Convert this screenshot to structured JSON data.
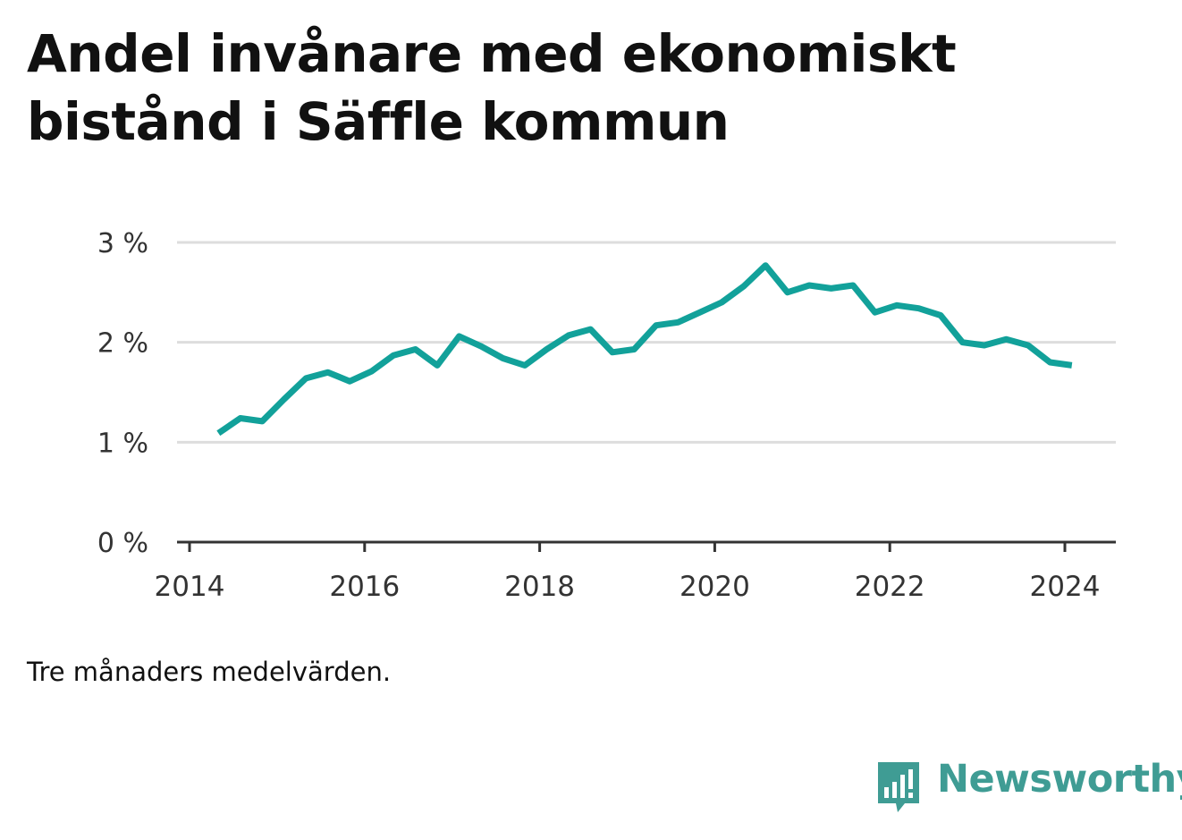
{
  "title": "Andel invånare med ekonomiskt bistånd i Säffle kommun",
  "note": "Tre månaders medelvärden.",
  "brand": {
    "name": "Newsworthy",
    "icon": "newsworthy-logo-icon",
    "color": "#3f9c94"
  },
  "chart_data": {
    "type": "line",
    "title": "Andel invånare med ekonomiskt bistånd i Säffle kommun",
    "xlabel": "",
    "ylabel": "",
    "xlim": [
      2014,
      2024.6
    ],
    "ylim": [
      0,
      3
    ],
    "yticks": [
      0,
      1,
      2,
      3
    ],
    "ytick_labels": [
      "0 %",
      "1 %",
      "2 %",
      "3 %"
    ],
    "xticks": [
      2014,
      2016,
      2018,
      2020,
      2022,
      2024
    ],
    "xtick_labels": [
      "2014",
      "2016",
      "2018",
      "2020",
      "2022",
      "2024"
    ],
    "grid": true,
    "line_color": "#12a19a",
    "series": [
      {
        "values": [
          {
            "x": 2014.33,
            "y": 1.09
          },
          {
            "x": 2014.58,
            "y": 1.24
          },
          {
            "x": 2014.83,
            "y": 1.21
          },
          {
            "x": 2015.08,
            "y": 1.43
          },
          {
            "x": 2015.33,
            "y": 1.64
          },
          {
            "x": 2015.58,
            "y": 1.7
          },
          {
            "x": 2015.83,
            "y": 1.61
          },
          {
            "x": 2016.08,
            "y": 1.71
          },
          {
            "x": 2016.33,
            "y": 1.87
          },
          {
            "x": 2016.58,
            "y": 1.93
          },
          {
            "x": 2016.83,
            "y": 1.77
          },
          {
            "x": 2017.08,
            "y": 2.06
          },
          {
            "x": 2017.33,
            "y": 1.96
          },
          {
            "x": 2017.58,
            "y": 1.84
          },
          {
            "x": 2017.83,
            "y": 1.77
          },
          {
            "x": 2018.08,
            "y": 1.93
          },
          {
            "x": 2018.33,
            "y": 2.07
          },
          {
            "x": 2018.58,
            "y": 2.13
          },
          {
            "x": 2018.83,
            "y": 1.9
          },
          {
            "x": 2019.08,
            "y": 1.93
          },
          {
            "x": 2019.33,
            "y": 2.17
          },
          {
            "x": 2019.58,
            "y": 2.2
          },
          {
            "x": 2019.83,
            "y": 2.3
          },
          {
            "x": 2020.08,
            "y": 2.4
          },
          {
            "x": 2020.33,
            "y": 2.56
          },
          {
            "x": 2020.58,
            "y": 2.77
          },
          {
            "x": 2020.83,
            "y": 2.5
          },
          {
            "x": 2021.08,
            "y": 2.57
          },
          {
            "x": 2021.33,
            "y": 2.54
          },
          {
            "x": 2021.58,
            "y": 2.57
          },
          {
            "x": 2021.83,
            "y": 2.3
          },
          {
            "x": 2022.08,
            "y": 2.37
          },
          {
            "x": 2022.33,
            "y": 2.34
          },
          {
            "x": 2022.58,
            "y": 2.27
          },
          {
            "x": 2022.83,
            "y": 2.0
          },
          {
            "x": 2023.08,
            "y": 1.97
          },
          {
            "x": 2023.33,
            "y": 2.03
          },
          {
            "x": 2023.58,
            "y": 1.97
          },
          {
            "x": 2023.83,
            "y": 1.8
          },
          {
            "x": 2024.08,
            "y": 1.77
          }
        ]
      }
    ]
  }
}
